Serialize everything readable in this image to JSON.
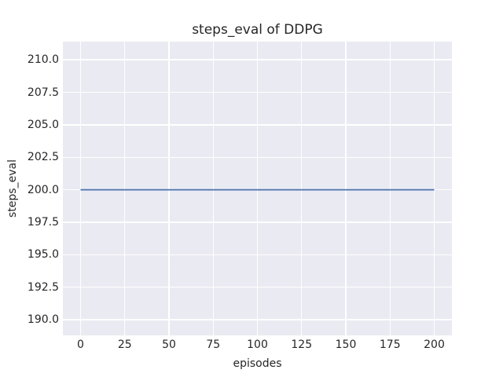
{
  "chart_data": {
    "type": "line",
    "title": "steps_eval of DDPG",
    "xlabel": "episodes",
    "ylabel": "steps_eval",
    "xlim": [
      -10,
      210
    ],
    "ylim": [
      188.8,
      211.4
    ],
    "x_ticks": [
      0,
      25,
      50,
      75,
      100,
      125,
      150,
      175,
      200
    ],
    "x_tick_labels": [
      "0",
      "25",
      "50",
      "75",
      "100",
      "125",
      "150",
      "175",
      "200"
    ],
    "y_ticks": [
      190.0,
      192.5,
      195.0,
      197.5,
      200.0,
      202.5,
      205.0,
      207.5,
      210.0
    ],
    "y_tick_labels": [
      "190.0",
      "192.5",
      "195.0",
      "197.5",
      "200.0",
      "202.5",
      "205.0",
      "207.5",
      "210.0"
    ],
    "grid": true,
    "legend_position": "none",
    "series": [
      {
        "name": "steps_eval",
        "color": "#4c72b0",
        "line_width": 1.8,
        "x": [
          0,
          200
        ],
        "y": [
          200,
          200
        ]
      }
    ],
    "colors": {
      "figure_background": "#ffffff",
      "plot_background": "#eaeaf2",
      "gridline": "#ffffff",
      "text": "#262626"
    }
  }
}
